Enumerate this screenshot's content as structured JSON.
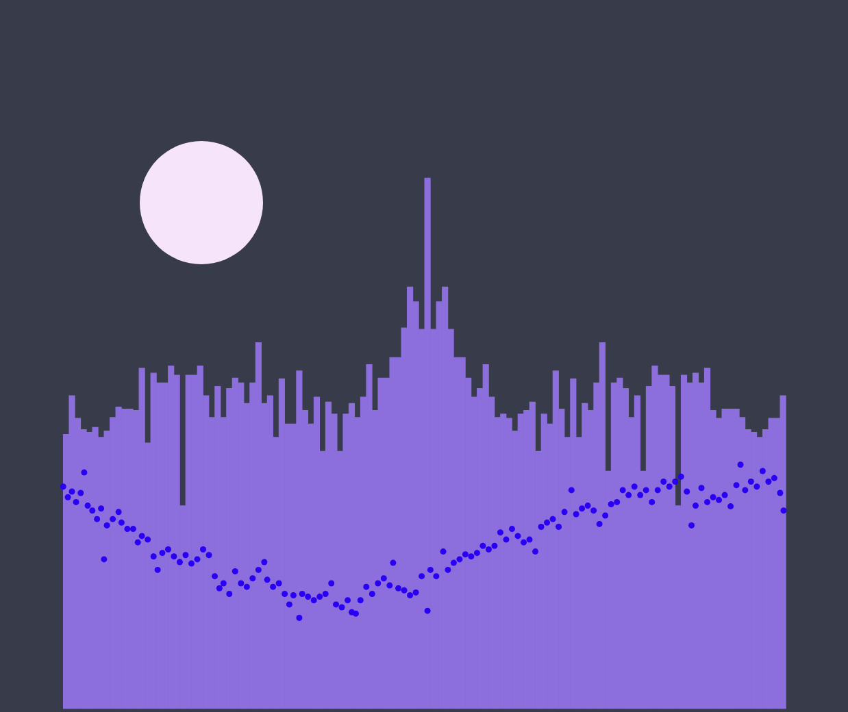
{
  "chart_data": {
    "type": "bar",
    "xlim": [
      0,
      1238
    ],
    "ylim": [
      0,
      100
    ],
    "grid": false,
    "tick_labels": false,
    "series": [
      {
        "type": "bar",
        "color": "#8c6fdd",
        "x": [
          5,
          15,
          25,
          35,
          45,
          55,
          65,
          75,
          85,
          95,
          105,
          115,
          125,
          135,
          145,
          155,
          165,
          175,
          185,
          195,
          205,
          215,
          225,
          235,
          245,
          255,
          265,
          275,
          285,
          295,
          305,
          315,
          325,
          335,
          345,
          355,
          365,
          375,
          385,
          395,
          405,
          415,
          425,
          435,
          445,
          455,
          465,
          475,
          485,
          495,
          505,
          515,
          525,
          535,
          545,
          555,
          565,
          575,
          585,
          595,
          605,
          615,
          625,
          635,
          645,
          655,
          665,
          675,
          685,
          695,
          705,
          715,
          725,
          735,
          745,
          755,
          765,
          775,
          785,
          795,
          805,
          815,
          825,
          835,
          845,
          855,
          865,
          875,
          885,
          895,
          905,
          915,
          925,
          935,
          945,
          955,
          965,
          975,
          985,
          995,
          1005,
          1015,
          1025,
          1035,
          1045,
          1055,
          1065,
          1075,
          1085,
          1095,
          1105,
          1115,
          1125,
          1135,
          1145,
          1155,
          1165,
          1175,
          1185,
          1195,
          1205,
          1215,
          1225,
          1235
        ],
        "values": [
          38.9,
          44.4,
          41.2,
          39.6,
          39.2,
          39.9,
          38.5,
          39.4,
          41.3,
          42.8,
          42.5,
          42.5,
          42.3,
          48.3,
          37.7,
          47.6,
          46.2,
          46.2,
          48.6,
          47.3,
          28.8,
          47.3,
          47.3,
          48.6,
          44.4,
          41.3,
          45.7,
          41.3,
          45.4,
          46.9,
          46.2,
          43.3,
          46.2,
          51.9,
          43.3,
          44.4,
          38.5,
          46.8,
          40.4,
          40.4,
          47.9,
          42.3,
          40.4,
          44.2,
          36.5,
          43.5,
          41.8,
          36.5,
          41.8,
          43.3,
          41.3,
          44.2,
          48.8,
          42.3,
          46.9,
          46.9,
          49.8,
          49.8,
          54.0,
          59.8,
          57.7,
          53.8,
          75.2,
          53.8,
          57.7,
          59.8,
          53.8,
          49.8,
          49.8,
          46.9,
          44.2,
          45.4,
          48.8,
          44.2,
          41.3,
          41.8,
          41.2,
          39.4,
          41.8,
          42.3,
          43.5,
          36.5,
          41.8,
          40.4,
          47.9,
          42.5,
          38.5,
          46.8,
          38.5,
          43.3,
          42.3,
          46.2,
          51.9,
          33.7,
          46.2,
          46.9,
          45.4,
          41.3,
          44.4,
          33.7,
          45.7,
          48.6,
          47.3,
          47.3,
          45.7,
          28.8,
          47.3,
          46.2,
          47.6,
          46.2,
          48.3,
          42.3,
          41.2,
          42.5,
          42.5,
          42.5,
          41.3,
          39.6,
          39.2,
          38.5,
          39.6,
          41.2,
          41.2,
          44.4
        ]
      },
      {
        "type": "scatter",
        "color": "#2a00f2",
        "marker": "circle",
        "x": [
          0,
          8,
          15,
          22,
          30,
          36,
          42,
          50,
          58,
          65,
          70,
          75,
          85,
          95,
          100,
          110,
          120,
          128,
          135,
          145,
          155,
          162,
          170,
          180,
          190,
          200,
          210,
          220,
          230,
          240,
          250,
          260,
          268,
          275,
          285,
          295,
          305,
          315,
          325,
          335,
          345,
          350,
          360,
          370,
          380,
          388,
          395,
          405,
          410,
          420,
          430,
          440,
          450,
          460,
          468,
          478,
          488,
          495,
          502,
          510,
          520,
          530,
          540,
          550,
          560,
          566,
          575,
          585,
          595,
          605,
          615,
          625,
          630,
          640,
          652,
          660,
          670,
          680,
          690,
          700,
          710,
          720,
          730,
          740,
          750,
          760,
          770,
          780,
          790,
          800,
          810,
          820,
          830,
          840,
          850,
          860,
          872,
          880,
          890,
          900,
          910,
          920,
          930,
          940,
          950,
          960,
          970,
          980,
          990,
          1000,
          1010,
          1020,
          1030,
          1040,
          1050,
          1060,
          1070,
          1078,
          1085,
          1095,
          1105,
          1115,
          1125,
          1135,
          1145,
          1155,
          1162,
          1170,
          1180,
          1190,
          1200,
          1210,
          1220,
          1230,
          1236
        ],
        "values": [
          31.5,
          30.0,
          30.8,
          29.3,
          30.6,
          33.5,
          28.8,
          28.1,
          26.9,
          28.4,
          21.2,
          26.0,
          26.9,
          27.9,
          26.4,
          25.5,
          25.5,
          23.6,
          24.5,
          24.0,
          21.6,
          19.7,
          22.1,
          22.6,
          21.6,
          20.8,
          21.8,
          20.6,
          21.2,
          22.6,
          21.8,
          18.8,
          17.1,
          17.8,
          16.3,
          19.5,
          17.8,
          17.3,
          18.5,
          19.7,
          20.8,
          18.3,
          17.3,
          17.8,
          16.3,
          14.8,
          16.1,
          12.9,
          16.3,
          15.9,
          15.4,
          15.9,
          16.3,
          17.8,
          14.8,
          14.4,
          15.4,
          13.7,
          13.5,
          15.4,
          17.3,
          16.3,
          17.8,
          18.5,
          17.5,
          20.7,
          17.1,
          16.8,
          16.1,
          16.5,
          18.8,
          13.9,
          19.7,
          18.8,
          22.3,
          19.7,
          20.7,
          21.2,
          21.9,
          21.6,
          22.1,
          23.1,
          22.6,
          23.1,
          25.0,
          24.0,
          25.5,
          24.5,
          23.6,
          24.0,
          22.3,
          25.8,
          26.4,
          26.9,
          25.8,
          27.9,
          31.0,
          27.6,
          28.4,
          28.8,
          28.1,
          26.2,
          27.4,
          29.0,
          29.3,
          31.0,
          30.3,
          31.5,
          30.3,
          31.0,
          29.3,
          31.0,
          32.2,
          31.5,
          32.2,
          32.9,
          30.8,
          26.0,
          28.8,
          31.3,
          29.3,
          30.0,
          29.6,
          30.3,
          28.7,
          31.7,
          34.6,
          31.0,
          32.2,
          31.5,
          33.7,
          32.2,
          32.7,
          30.6,
          28.1
        ]
      }
    ]
  }
}
